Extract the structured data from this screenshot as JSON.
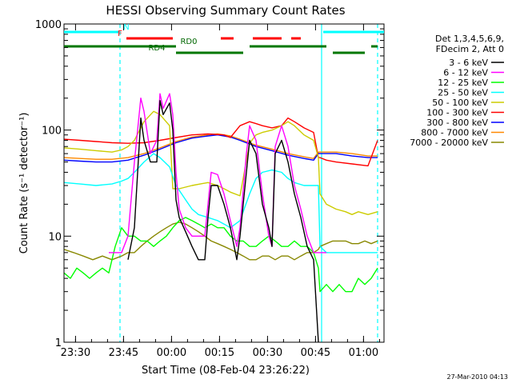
{
  "chart_data": {
    "type": "line",
    "title": "HESSI Observing Summary Count Rates",
    "xlabel": "Start Time (08-Feb-04 23:26:22)",
    "ylabel": "Count Rate (s⁻¹ detector⁻¹)",
    "ylog": true,
    "ylim": [
      1,
      1000
    ],
    "xlim_minutes": [
      0,
      100
    ],
    "x_ticks": [
      {
        "minute": 3.6,
        "label": "23:30"
      },
      {
        "minute": 18.6,
        "label": "23:45"
      },
      {
        "minute": 33.6,
        "label": "00:00"
      },
      {
        "minute": 48.6,
        "label": "00:15"
      },
      {
        "minute": 63.6,
        "label": "00:30"
      },
      {
        "minute": 78.6,
        "label": "00:45"
      },
      {
        "minute": 93.6,
        "label": "01:00"
      }
    ],
    "y_ticks": [
      {
        "value": 1,
        "label": "1"
      },
      {
        "value": 10,
        "label": "10"
      },
      {
        "value": 100,
        "label": "100"
      },
      {
        "value": 1000,
        "label": "1000"
      }
    ],
    "legend": {
      "placement": "right",
      "header": [
        "Det 1,3,4,5,6,9,",
        "FDecim 2, Att 0"
      ]
    },
    "series": [
      {
        "name": "3 - 6 keV",
        "color": "#000000",
        "x": [
          0,
          14,
          16,
          20,
          22,
          24,
          25,
          27,
          29,
          30,
          31,
          33,
          34,
          35,
          36,
          38,
          40,
          42,
          44,
          45,
          46,
          48,
          50,
          52,
          54,
          55,
          57,
          58,
          60,
          62,
          64,
          65,
          66,
          68,
          70,
          72,
          74,
          76,
          78,
          79.5,
          80,
          85,
          90,
          95,
          98
        ],
        "y": [
          null,
          null,
          null,
          6,
          12,
          130,
          80,
          50,
          50,
          190,
          140,
          180,
          100,
          22,
          15,
          11,
          8,
          6,
          6,
          15,
          30,
          30,
          20,
          12,
          6,
          10,
          40,
          80,
          60,
          20,
          12,
          8,
          60,
          80,
          50,
          25,
          15,
          8,
          6,
          1,
          null,
          null,
          null,
          null,
          null
        ]
      },
      {
        "name": "6 - 12 keV",
        "color": "#ff00ff",
        "x": [
          14,
          16,
          18,
          20,
          22,
          24,
          25,
          27,
          29,
          30,
          31,
          33,
          34,
          35,
          36,
          38,
          40,
          42,
          44,
          45,
          46,
          48,
          50,
          52,
          54,
          55,
          57,
          58,
          60,
          62,
          64,
          65,
          66,
          68,
          70,
          72,
          74,
          76,
          78,
          79.5,
          80,
          82,
          85,
          90,
          95,
          98
        ],
        "y": [
          7,
          7,
          7,
          10,
          50,
          200,
          150,
          60,
          80,
          220,
          160,
          220,
          140,
          40,
          18,
          12,
          10,
          10,
          10,
          20,
          40,
          38,
          25,
          14,
          8,
          12,
          60,
          110,
          80,
          25,
          10,
          8,
          70,
          110,
          70,
          30,
          18,
          10,
          7,
          7,
          7,
          7,
          null,
          null,
          null,
          null
        ]
      },
      {
        "name": "12 - 25 keV",
        "color": "#00ff00",
        "x": [
          0,
          2,
          4,
          6,
          8,
          10,
          12,
          14,
          16,
          18,
          20,
          22,
          24,
          26,
          28,
          30,
          32,
          34,
          36,
          38,
          40,
          42,
          44,
          46,
          48,
          50,
          52,
          54,
          56,
          58,
          60,
          62,
          64,
          66,
          68,
          70,
          72,
          74,
          76,
          78,
          79.5,
          80,
          82,
          84,
          86,
          88,
          90,
          92,
          94,
          96,
          98
        ],
        "y": [
          4.5,
          4,
          5,
          4.5,
          4,
          4.5,
          5,
          4.5,
          8,
          12,
          10,
          10,
          9,
          9,
          8,
          9,
          10,
          12,
          14,
          15,
          14,
          13,
          12,
          13,
          12,
          12,
          10,
          9,
          9,
          8,
          8,
          9,
          10,
          9,
          8,
          8,
          9,
          8,
          8,
          7,
          5,
          3,
          3.5,
          3,
          3.5,
          3,
          3,
          4,
          3.5,
          4,
          5
        ]
      },
      {
        "name": "25 - 50 keV",
        "color": "#00ffff",
        "x": [
          0,
          5,
          10,
          15,
          18,
          20,
          22,
          25,
          28,
          30,
          33,
          35,
          38,
          40,
          42,
          45,
          48,
          50,
          52,
          55,
          58,
          60,
          62,
          65,
          68,
          70,
          72,
          75,
          78,
          79.5,
          80,
          82,
          85,
          90,
          95,
          98
        ],
        "y": [
          32,
          31,
          30,
          31,
          33,
          35,
          40,
          50,
          60,
          55,
          45,
          30,
          22,
          18,
          16,
          15,
          14,
          13,
          12,
          14,
          25,
          35,
          40,
          42,
          40,
          35,
          32,
          30,
          30,
          30,
          8,
          7,
          7,
          7,
          7,
          7
        ]
      },
      {
        "name": "50 - 100 keV",
        "color": "#cccc00",
        "x": [
          0,
          5,
          10,
          15,
          18,
          20,
          22,
          25,
          28,
          30,
          33,
          34,
          36,
          40,
          45,
          48,
          50,
          52,
          55,
          58,
          60,
          62,
          65,
          68,
          70,
          72,
          75,
          78,
          79.5,
          80,
          82,
          85,
          88,
          90,
          92,
          95,
          98
        ],
        "y": [
          68,
          66,
          64,
          62,
          65,
          70,
          80,
          120,
          150,
          140,
          110,
          28,
          28,
          30,
          32,
          30,
          28,
          26,
          24,
          75,
          90,
          95,
          100,
          110,
          120,
          110,
          90,
          80,
          55,
          25,
          20,
          18,
          17,
          16,
          17,
          16,
          17
        ]
      },
      {
        "name": "100 - 300 keV",
        "color": "#ff0000",
        "x": [
          0,
          5,
          10,
          15,
          20,
          25,
          30,
          35,
          40,
          45,
          50,
          52,
          55,
          58,
          60,
          62,
          65,
          68,
          70,
          72,
          75,
          78,
          79.5,
          80,
          82,
          85,
          90,
          95,
          98
        ],
        "y": [
          82,
          80,
          78,
          76,
          75,
          76,
          80,
          85,
          90,
          92,
          90,
          85,
          110,
          120,
          115,
          110,
          105,
          110,
          130,
          120,
          105,
          95,
          55,
          55,
          52,
          50,
          48,
          46,
          80
        ]
      },
      {
        "name": "300 - 800 keV",
        "color": "#0000ff",
        "x": [
          0,
          5,
          10,
          15,
          20,
          25,
          30,
          35,
          40,
          45,
          48,
          52,
          55,
          60,
          65,
          70,
          75,
          78,
          79.5,
          80,
          85,
          90,
          95,
          98
        ],
        "y": [
          52,
          51,
          50,
          50,
          52,
          58,
          66,
          76,
          84,
          88,
          90,
          86,
          80,
          70,
          64,
          58,
          54,
          52,
          60,
          60,
          60,
          57,
          55,
          55
        ]
      },
      {
        "name": "800 - 7000 keV",
        "color": "#ff8800",
        "x": [
          0,
          5,
          10,
          15,
          20,
          25,
          30,
          35,
          40,
          45,
          48,
          52,
          55,
          60,
          65,
          70,
          75,
          78,
          79.5,
          80,
          85,
          90,
          95,
          98
        ],
        "y": [
          55,
          54,
          53,
          53,
          55,
          60,
          68,
          78,
          86,
          90,
          92,
          88,
          82,
          72,
          66,
          60,
          56,
          54,
          62,
          62,
          62,
          60,
          57,
          57
        ]
      },
      {
        "name": "7000 - 20000 keV",
        "color": "#888800",
        "x": [
          0,
          3,
          6,
          9,
          12,
          15,
          18,
          20,
          22,
          24,
          26,
          28,
          30,
          32,
          34,
          36,
          38,
          40,
          42,
          44,
          46,
          48,
          50,
          52,
          54,
          56,
          58,
          60,
          62,
          64,
          66,
          68,
          70,
          72,
          74,
          76,
          78,
          79.5,
          80,
          82,
          84,
          86,
          88,
          90,
          92,
          94,
          96,
          98
        ],
        "y": [
          7.5,
          7,
          6.5,
          6,
          6.5,
          6,
          6.5,
          7,
          7,
          8,
          9,
          10,
          11,
          12,
          13,
          13.5,
          13,
          12,
          11,
          10,
          9,
          8.5,
          8,
          7.5,
          7,
          6.5,
          6,
          6,
          6.5,
          6.5,
          6,
          6.5,
          6.5,
          6,
          6.5,
          7,
          7,
          7.5,
          8,
          8.5,
          9,
          9,
          9,
          8.5,
          8.5,
          9,
          8.5,
          9
        ]
      }
    ],
    "flags": [
      {
        "label": "N",
        "color": "#00ffff",
        "segments": [
          [
            0,
            17
          ],
          [
            81,
            100
          ]
        ],
        "label_minute": 19.5,
        "level": 0
      },
      {
        "label": "F",
        "color": "#ff0000",
        "segments": [
          [
            19.5,
            34
          ],
          [
            49,
            53
          ],
          [
            59,
            68
          ],
          [
            71,
            74
          ]
        ],
        "label_minute": 17.5,
        "level": 1
      },
      {
        "label": "RD0",
        "color": "#007700",
        "segments": [
          [
            0,
            35
          ],
          [
            58,
            82
          ],
          [
            96,
            98
          ]
        ],
        "label_minute": 39,
        "level": 2
      },
      {
        "label": "RD4",
        "color": "#007700",
        "segments": [
          [
            35,
            56
          ],
          [
            84,
            94
          ]
        ],
        "label_minute": 29,
        "level": 3
      }
    ],
    "vertical_lines": [
      {
        "minute": 17.5,
        "style": "dashed",
        "color": "#00ffff"
      },
      {
        "minute": 80.5,
        "style": "solid",
        "color": "#00ffff"
      },
      {
        "minute": 98,
        "style": "dashed",
        "color": "#00ffff"
      }
    ],
    "grid": false
  },
  "timestamp": "27-Mar-2010 04:13"
}
